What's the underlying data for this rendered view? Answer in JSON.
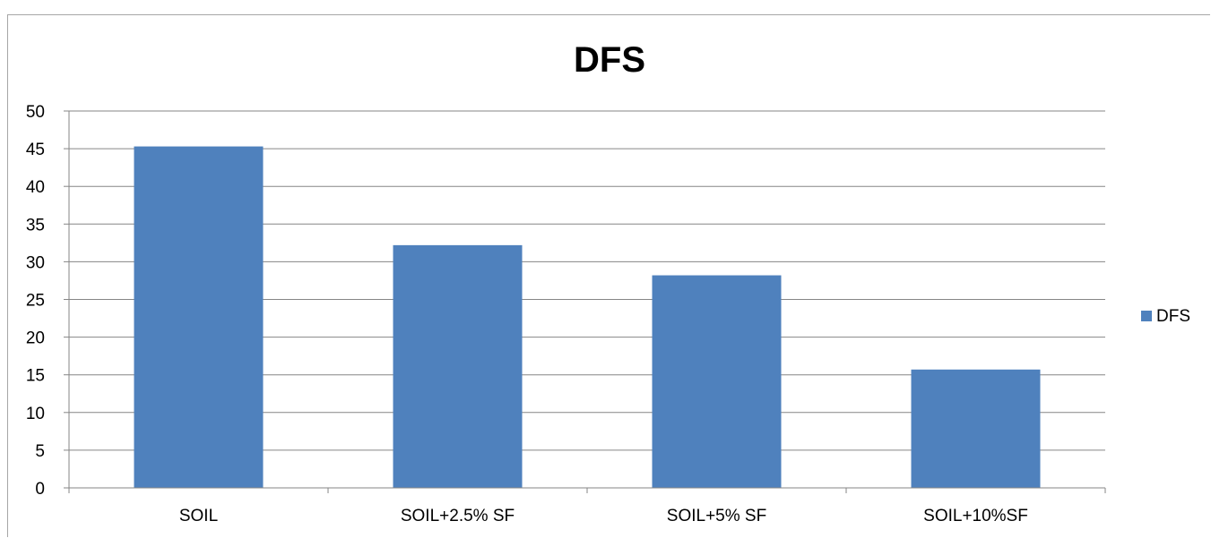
{
  "chart_data": {
    "type": "bar",
    "title": "DFS",
    "categories": [
      "SOIL",
      "SOIL+2.5% SF",
      "SOIL+5% SF",
      "SOIL+10%SF"
    ],
    "series": [
      {
        "name": "DFS",
        "values": [
          45.3,
          32.2,
          28.2,
          15.7
        ],
        "color": "#4f81bd"
      }
    ],
    "ylim": [
      0,
      50
    ],
    "yticks": [
      "0",
      "5",
      "10",
      "15",
      "20",
      "25",
      "30",
      "35",
      "40",
      "45",
      "50"
    ],
    "grid": true,
    "legend_position": "right",
    "gridline_color": "#868686"
  }
}
